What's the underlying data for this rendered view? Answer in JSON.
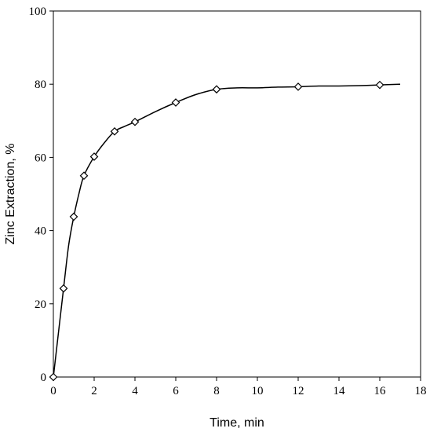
{
  "chart_data": {
    "type": "line",
    "title": "",
    "xlabel": "Time, min",
    "ylabel": "Zinc Extraction, %",
    "xlim": [
      0,
      18
    ],
    "ylim": [
      0,
      100
    ],
    "xticks": [
      0,
      2,
      4,
      6,
      8,
      10,
      12,
      14,
      16,
      18
    ],
    "yticks": [
      0,
      20,
      40,
      60,
      80,
      100
    ],
    "grid": false,
    "legend": "none",
    "marker": "diamond-open",
    "line_color": "#000000",
    "series": [
      {
        "points": [
          {
            "x": 0,
            "y": 0
          },
          {
            "x": 0.5,
            "y": 24.2
          },
          {
            "x": 1,
            "y": 43.8
          },
          {
            "x": 1.5,
            "y": 55
          },
          {
            "x": 2,
            "y": 60.2
          },
          {
            "x": 3,
            "y": 67.1
          },
          {
            "x": 4,
            "y": 69.7
          },
          {
            "x": 6,
            "y": 75
          },
          {
            "x": 8,
            "y": 78.6
          },
          {
            "x": 12,
            "y": 79.3
          },
          {
            "x": 16,
            "y": 79.8
          }
        ],
        "curve": [
          {
            "x": 0,
            "y": 0
          },
          {
            "x": 0.5,
            "y": 24.2
          },
          {
            "x": 0.75,
            "y": 36
          },
          {
            "x": 1,
            "y": 43.8
          },
          {
            "x": 1.25,
            "y": 50
          },
          {
            "x": 1.5,
            "y": 55
          },
          {
            "x": 2,
            "y": 60.2
          },
          {
            "x": 2.5,
            "y": 64
          },
          {
            "x": 3,
            "y": 67.1
          },
          {
            "x": 3.5,
            "y": 68.5
          },
          {
            "x": 4,
            "y": 69.7
          },
          {
            "x": 5,
            "y": 72.5
          },
          {
            "x": 6,
            "y": 75
          },
          {
            "x": 7,
            "y": 77.2
          },
          {
            "x": 8,
            "y": 78.6
          },
          {
            "x": 9,
            "y": 79
          },
          {
            "x": 10,
            "y": 79
          },
          {
            "x": 11,
            "y": 79.2
          },
          {
            "x": 12,
            "y": 79.3
          },
          {
            "x": 13,
            "y": 79.5
          },
          {
            "x": 14,
            "y": 79.5
          },
          {
            "x": 15,
            "y": 79.6
          },
          {
            "x": 16,
            "y": 79.8
          },
          {
            "x": 17,
            "y": 80
          }
        ]
      }
    ]
  }
}
